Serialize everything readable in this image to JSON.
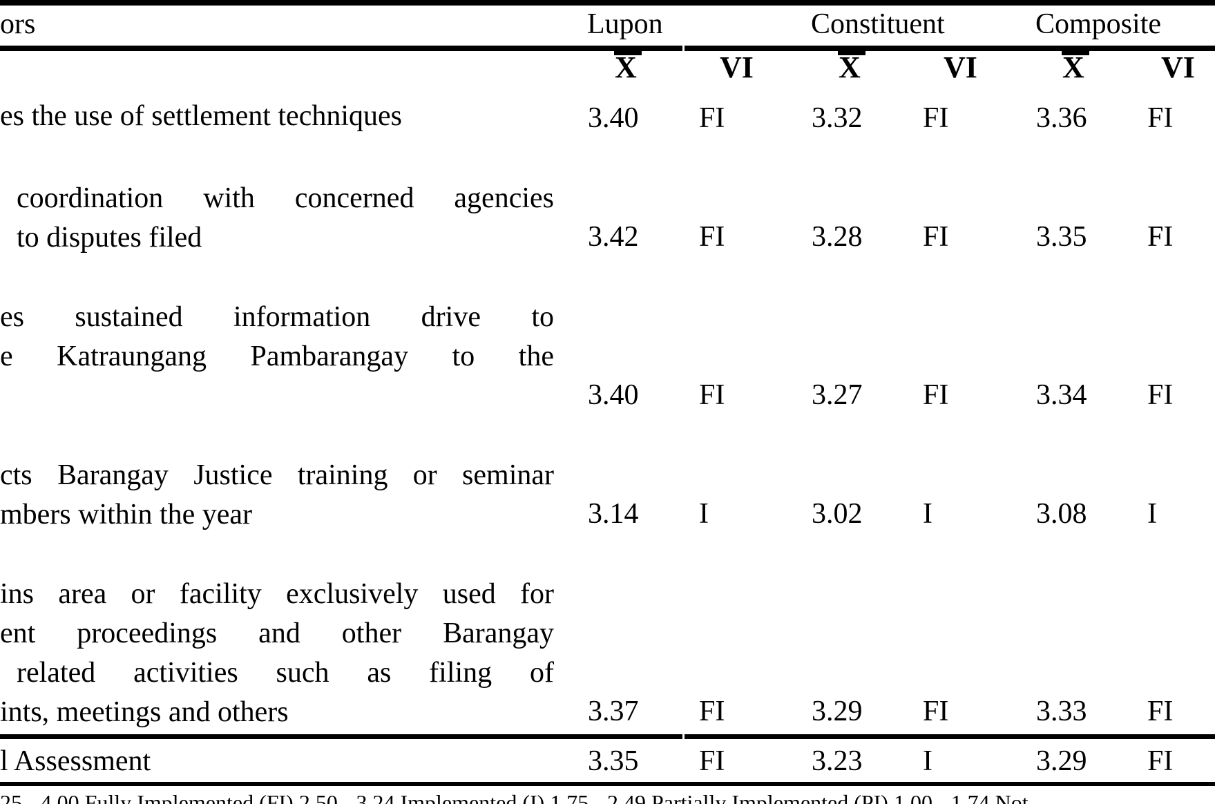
{
  "table": {
    "header": {
      "indicators": "ors",
      "groups": [
        "Lupon",
        "Constituent",
        "Composite"
      ],
      "sub_mean": "X",
      "sub_vi": "VI"
    },
    "rows": [
      {
        "lines": [
          "es the use of settlement techniques"
        ],
        "lupon_mean": "3.40",
        "lupon_vi": "FI",
        "constituent_mean": "3.32",
        "constituent_vi": "FI",
        "composite_mean": "3.36",
        "composite_vi": "FI"
      },
      {
        "lines": [
          "coordination with concerned agencies",
          "to disputes filed"
        ],
        "lupon_mean": "3.42",
        "lupon_vi": "FI",
        "constituent_mean": "3.28",
        "constituent_vi": "FI",
        "composite_mean": "3.35",
        "composite_vi": "FI"
      },
      {
        "lines": [
          "es sustained information drive to",
          "e Katraungang Pambarangay to the"
        ],
        "lupon_mean": "3.40",
        "lupon_vi": "FI",
        "constituent_mean": "3.27",
        "constituent_vi": "FI",
        "composite_mean": "3.34",
        "composite_vi": "FI"
      },
      {
        "lines": [
          "cts Barangay Justice training or seminar",
          "mbers within the year"
        ],
        "lupon_mean": "3.14",
        "lupon_vi": "I",
        "constituent_mean": "3.02",
        "constituent_vi": "I",
        "composite_mean": "3.08",
        "composite_vi": "I"
      },
      {
        "lines": [
          "ins area or facility exclusively used for",
          "ent proceedings and other Barangay",
          "related activities such as filing of",
          "ints, meetings and others"
        ],
        "lupon_mean": "3.37",
        "lupon_vi": "FI",
        "constituent_mean": "3.29",
        "constituent_vi": "FI",
        "composite_mean": "3.33",
        "composite_vi": "FI"
      }
    ],
    "overall": {
      "label": "l Assessment",
      "lupon_mean": "3.35",
      "lupon_vi": "FI",
      "constituent_mean": "3.23",
      "constituent_vi": "I",
      "composite_mean": "3.29",
      "composite_vi": "FI"
    },
    "legend": "25 - 4.00 Fully Implemented (FI) 2.50 - 3.24 Implemented (I) 1.75 - 2.49 Partially Implemented (PI) 1.00 - 1.74 Not"
  }
}
